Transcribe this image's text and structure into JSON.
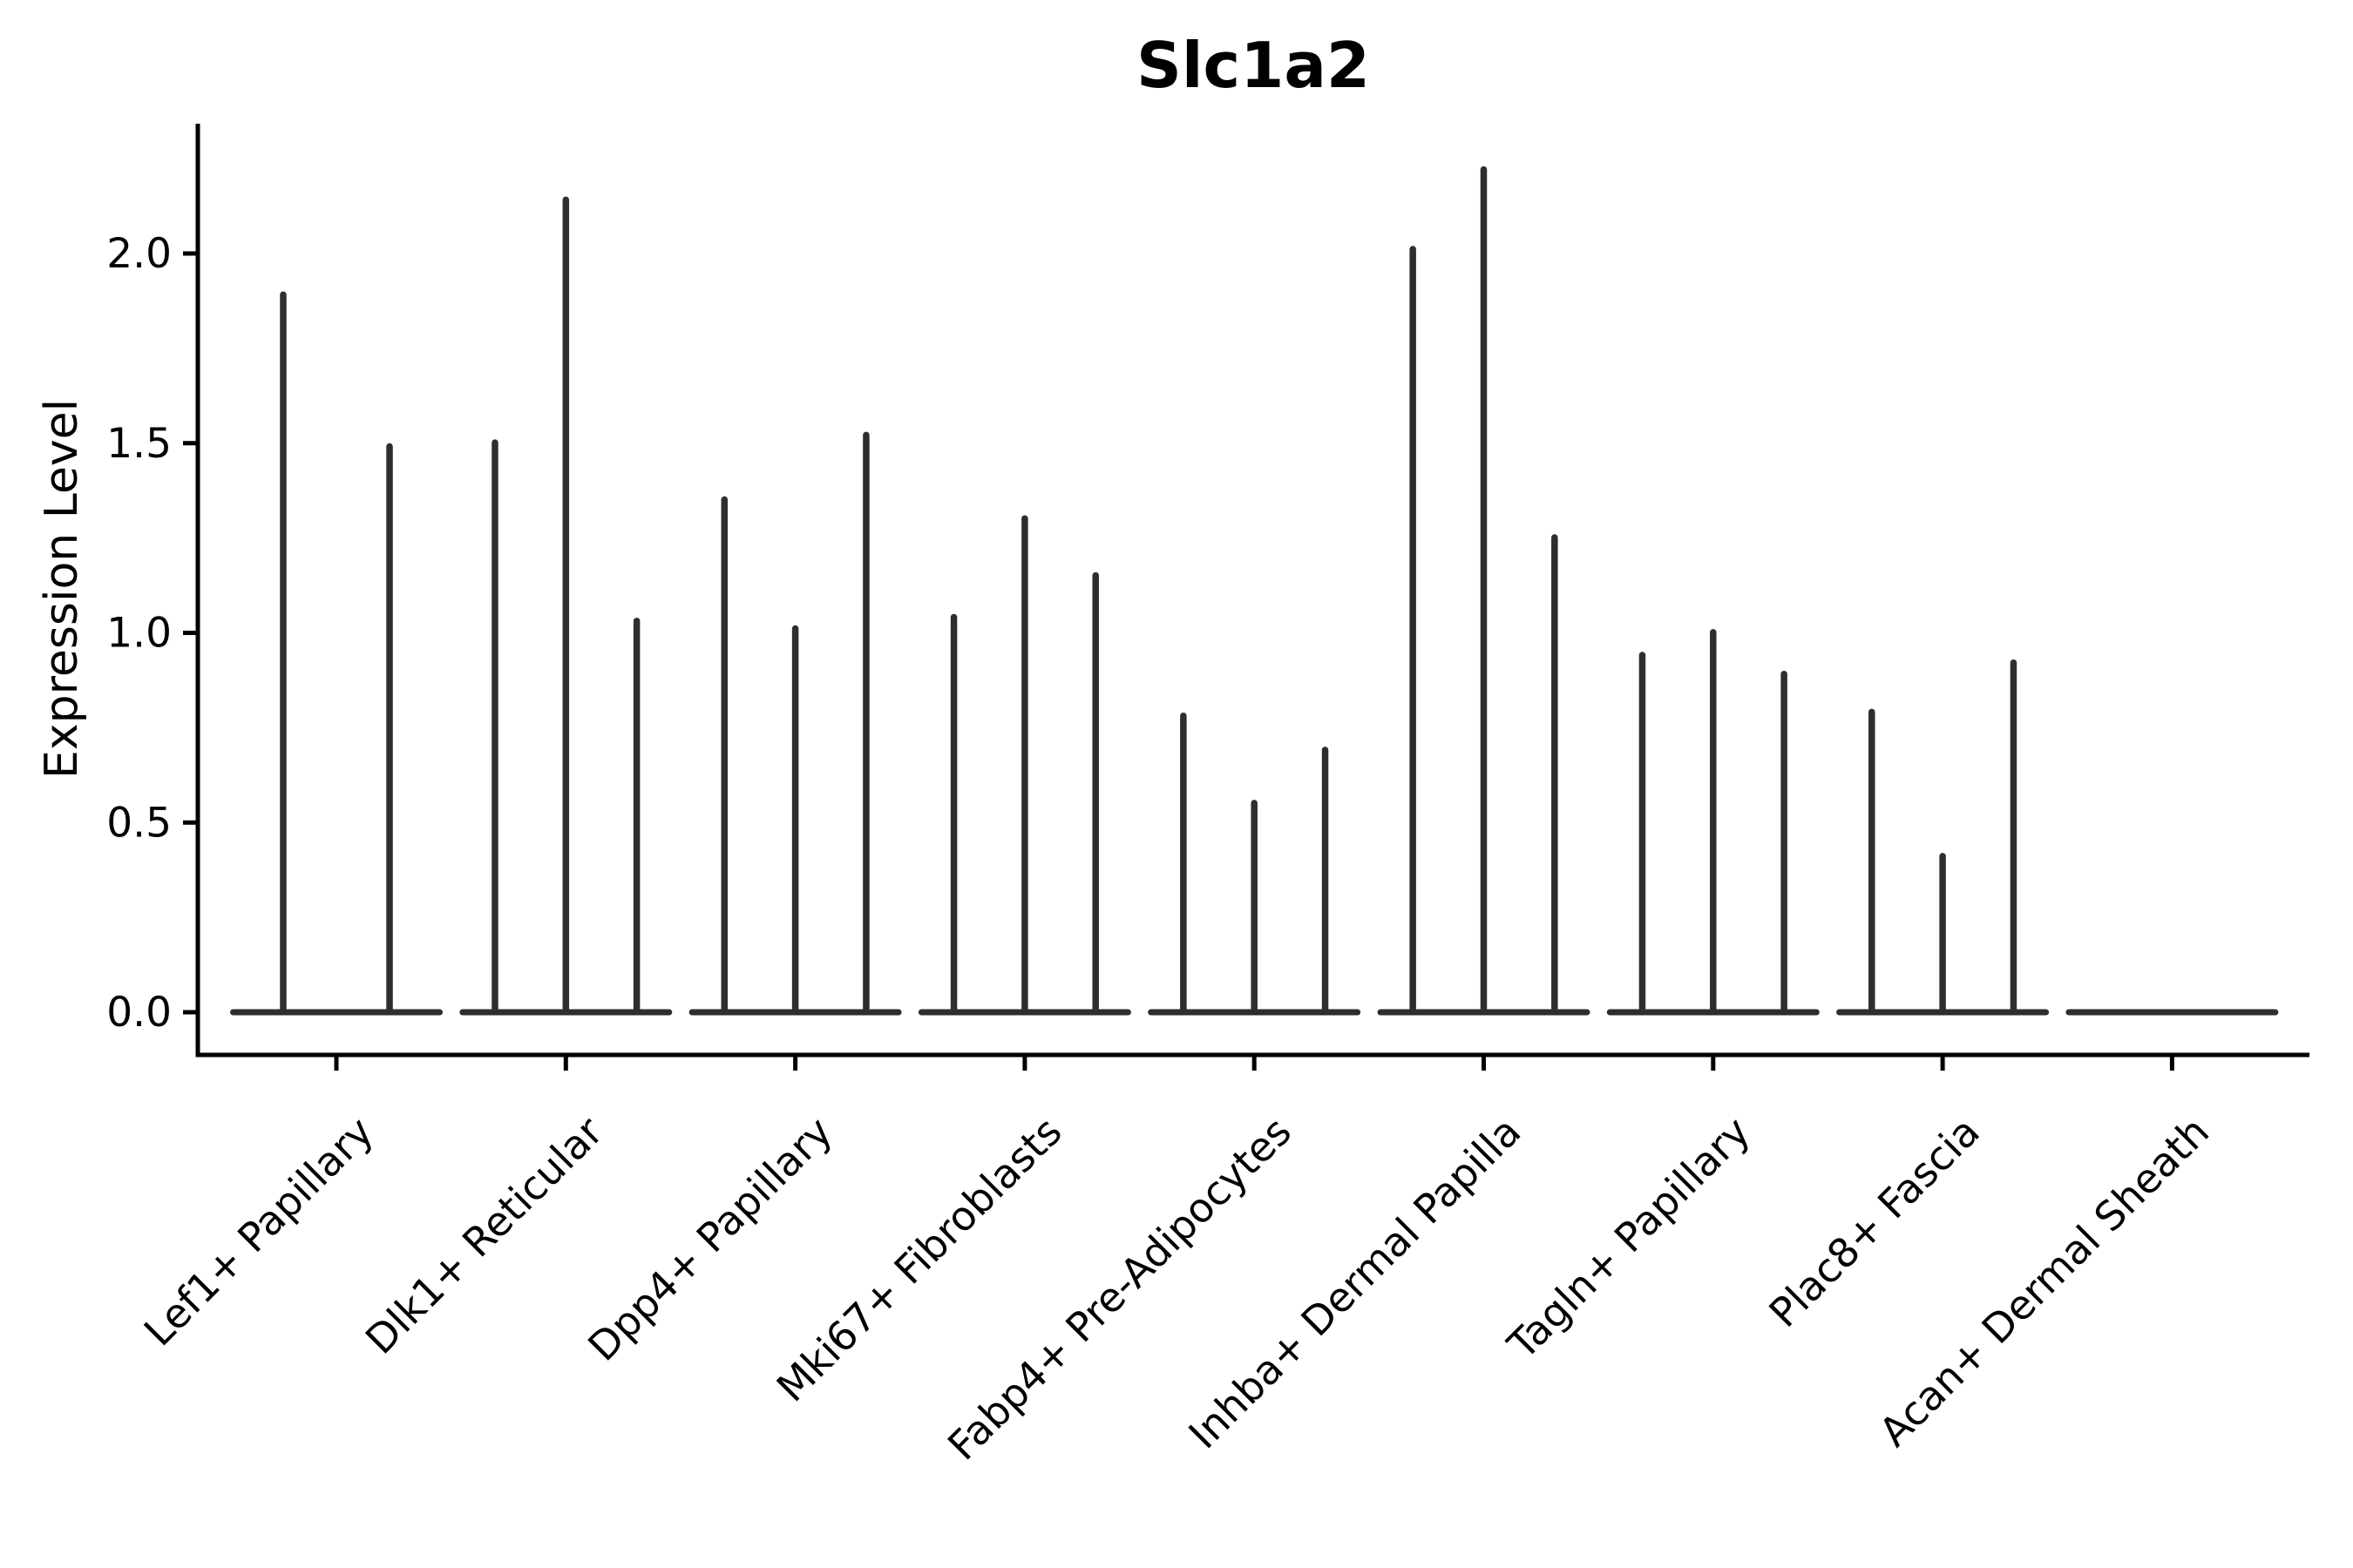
{
  "figure": {
    "title": "Slc1a2",
    "ylabel": "Expression Level"
  },
  "colors": {
    "background": "#ffffff",
    "violin": "#2e2e2e",
    "axis": "#000000",
    "text": "#000000"
  },
  "chart_data": {
    "type": "violin",
    "title": "Slc1a2",
    "xlabel": "",
    "ylabel": "Expression Level",
    "grid": false,
    "legend": "none",
    "ylim": [
      -0.11,
      2.34
    ],
    "ytick_labels": [
      "0.0",
      "0.5",
      "1.0",
      "1.5",
      "2.0"
    ],
    "ytick_values": [
      0.0,
      0.5,
      1.0,
      1.5,
      2.0
    ],
    "categories": [
      "Lef1+ Papillary",
      "Dlk1+ Reticular",
      "Dpp4+ Papillary",
      "Mki67+ Fibroblasts",
      "Fabp4+ Pre-Adipocytes",
      "Inhba+ Dermal Papilla",
      "Tagln+ Papillary",
      "Plac8+ Fascia",
      "Acan+ Dermal Sheath"
    ],
    "violin_style": "narrow spikes rising from flat baseline at 0 (most cells zero expression)",
    "groups": [
      {
        "category": "Lef1+ Papillary",
        "violin_peaks": [
          1.9,
          1.5
        ]
      },
      {
        "category": "Dlk1+ Reticular",
        "violin_peaks": [
          1.51,
          2.15,
          1.04
        ]
      },
      {
        "category": "Dpp4+ Papillary",
        "violin_peaks": [
          1.36,
          1.02,
          1.53
        ]
      },
      {
        "category": "Mki67+ Fibroblasts",
        "violin_peaks": [
          1.05,
          1.31,
          1.16
        ]
      },
      {
        "category": "Fabp4+ Pre-Adipocytes",
        "violin_peaks": [
          0.79,
          0.56,
          0.7
        ]
      },
      {
        "category": "Inhba+ Dermal Papilla",
        "violin_peaks": [
          2.02,
          2.23,
          1.26
        ]
      },
      {
        "category": "Tagln+ Papillary",
        "violin_peaks": [
          0.95,
          1.01,
          0.9
        ]
      },
      {
        "category": "Plac8+ Fascia",
        "violin_peaks": [
          0.8,
          0.42,
          0.93
        ]
      },
      {
        "category": "Acan+ Dermal Sheath",
        "violin_peaks": []
      }
    ]
  }
}
